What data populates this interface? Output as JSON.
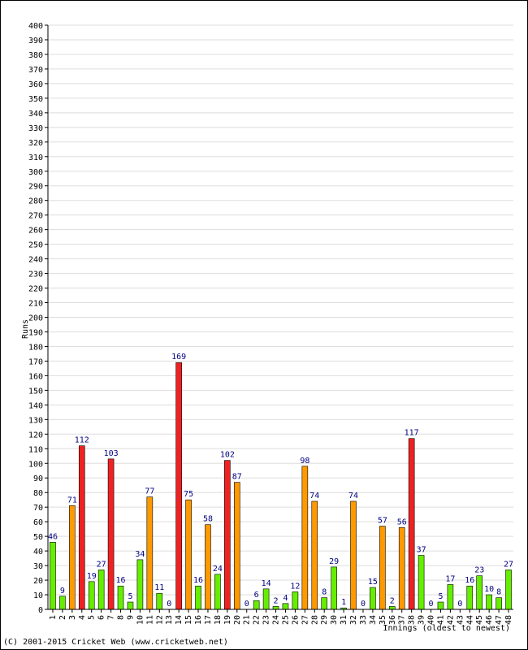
{
  "chart_data": {
    "type": "bar",
    "xlabel": "Innings (oldest to newest)",
    "ylabel": "Runs",
    "ylim": [
      0,
      400
    ],
    "ytick_step": 10,
    "grid": true,
    "categories": [
      "1",
      "2",
      "3",
      "4",
      "5",
      "6",
      "7",
      "8",
      "9",
      "10",
      "11",
      "12",
      "13",
      "14",
      "15",
      "16",
      "17",
      "18",
      "19",
      "20",
      "21",
      "22",
      "23",
      "24",
      "25",
      "26",
      "27",
      "28",
      "29",
      "30",
      "31",
      "32",
      "33",
      "34",
      "35",
      "36",
      "37",
      "38",
      "39",
      "40",
      "41",
      "42",
      "43",
      "44",
      "45",
      "46",
      "47",
      "48"
    ],
    "values": [
      46,
      9,
      71,
      112,
      19,
      27,
      103,
      16,
      5,
      34,
      77,
      11,
      0,
      169,
      75,
      16,
      58,
      24,
      102,
      87,
      0,
      6,
      14,
      2,
      4,
      12,
      98,
      74,
      8,
      29,
      1,
      74,
      0,
      15,
      57,
      2,
      56,
      117,
      37,
      0,
      5,
      17,
      0,
      16,
      23,
      10,
      8,
      27
    ],
    "bar_colors": {
      "under_50": "#66ee00",
      "fifty_to_99": "#ff9900",
      "hundred_plus": "#ee2222"
    },
    "label_color": "#000080"
  },
  "footer": {
    "copyright": "(C) 2001-2015 Cricket Web (www.cricketweb.net)"
  }
}
